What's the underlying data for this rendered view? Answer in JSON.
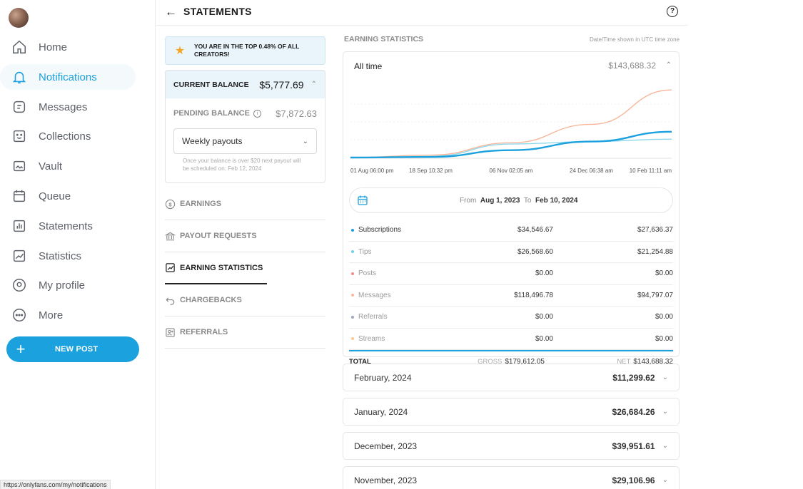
{
  "nav": {
    "items": [
      {
        "label": "Home",
        "icon": "home-icon"
      },
      {
        "label": "Notifications",
        "icon": "bell-icon"
      },
      {
        "label": "Messages",
        "icon": "message-icon"
      },
      {
        "label": "Collections",
        "icon": "collections-icon"
      },
      {
        "label": "Vault",
        "icon": "vault-icon"
      },
      {
        "label": "Queue",
        "icon": "calendar-icon"
      },
      {
        "label": "Statements",
        "icon": "statements-icon"
      },
      {
        "label": "Statistics",
        "icon": "statistics-icon"
      },
      {
        "label": "My profile",
        "icon": "profile-icon"
      },
      {
        "label": "More",
        "icon": "more-icon"
      }
    ],
    "active_index": 1,
    "new_post_label": "NEW POST"
  },
  "status_url": "https://onlyfans.com/my/notifications",
  "header": {
    "title": "STATEMENTS",
    "back_icon": "arrow-left-icon",
    "help_icon": "help-icon"
  },
  "banner": {
    "text": "YOU ARE IN THE TOP 0.48% OF ALL CREATORS!"
  },
  "balance": {
    "current_label": "CURRENT BALANCE",
    "current_value": "$5,777.69",
    "pending_label": "PENDING BALANCE",
    "pending_value": "$7,872.63",
    "payout_option": "Weekly payouts",
    "hint": "Once your balance is over $20 next payout will be scheduled on: Feb 12, 2024"
  },
  "menu": {
    "items": [
      "EARNINGS",
      "PAYOUT REQUESTS",
      "EARNING STATISTICS",
      "CHARGEBACKS",
      "REFERRALS"
    ],
    "active_index": 2
  },
  "stats": {
    "section_label": "EARNING STATISTICS",
    "timezone_note": "Date/Time shown in UTC time zone",
    "period_label": "All time",
    "period_total": "$143,688.32",
    "date_from_label": "From",
    "date_from": "Aug 1, 2023",
    "date_to_label": "To",
    "date_to": "Feb 10, 2024",
    "rows": [
      {
        "name": "Subscriptions",
        "gross": "$34,546.67",
        "net": "$27,636.37",
        "color": "#1ba1de"
      },
      {
        "name": "Tips",
        "gross": "$26,568.60",
        "net": "$21,254.88",
        "color": "#6fd3e6"
      },
      {
        "name": "Posts",
        "gross": "$0.00",
        "net": "$0.00",
        "color": "#f48b8b"
      },
      {
        "name": "Messages",
        "gross": "$118,496.78",
        "net": "$94,797.07",
        "color": "#f7b79c"
      },
      {
        "name": "Referrals",
        "gross": "$0.00",
        "net": "$0.00",
        "color": "#a0a8b8"
      },
      {
        "name": "Streams",
        "gross": "$0.00",
        "net": "$0.00",
        "color": "#f7c98f"
      }
    ],
    "total_label": "TOTAL",
    "gross_label": "GROSS",
    "gross_total": "$179,612.05",
    "net_label": "NET",
    "net_total": "$143,688.32"
  },
  "chart_data": {
    "type": "line",
    "x": [
      "01 Aug 06:00 pm",
      "18 Sep 10:32 pm",
      "06 Nov 02:05 am",
      "24 Dec 06:38 am",
      "10 Feb 11:11 am"
    ],
    "series": [
      {
        "name": "Messages",
        "values": [
          0,
          2,
          12,
          27,
          55
        ],
        "color": "#f7b79c"
      },
      {
        "name": "Tips",
        "values": [
          0,
          1,
          11,
          13,
          15
        ],
        "color": "#8fd8ea"
      },
      {
        "name": "Subscriptions",
        "values": [
          0,
          0.5,
          6,
          13,
          21
        ],
        "color": "#1ba1de"
      }
    ],
    "grid": true
  },
  "months": [
    {
      "label": "February, 2024",
      "value": "$11,299.62"
    },
    {
      "label": "January, 2024",
      "value": "$26,684.26"
    },
    {
      "label": "December, 2023",
      "value": "$39,951.61"
    },
    {
      "label": "November, 2023",
      "value": "$29,106.96"
    }
  ]
}
